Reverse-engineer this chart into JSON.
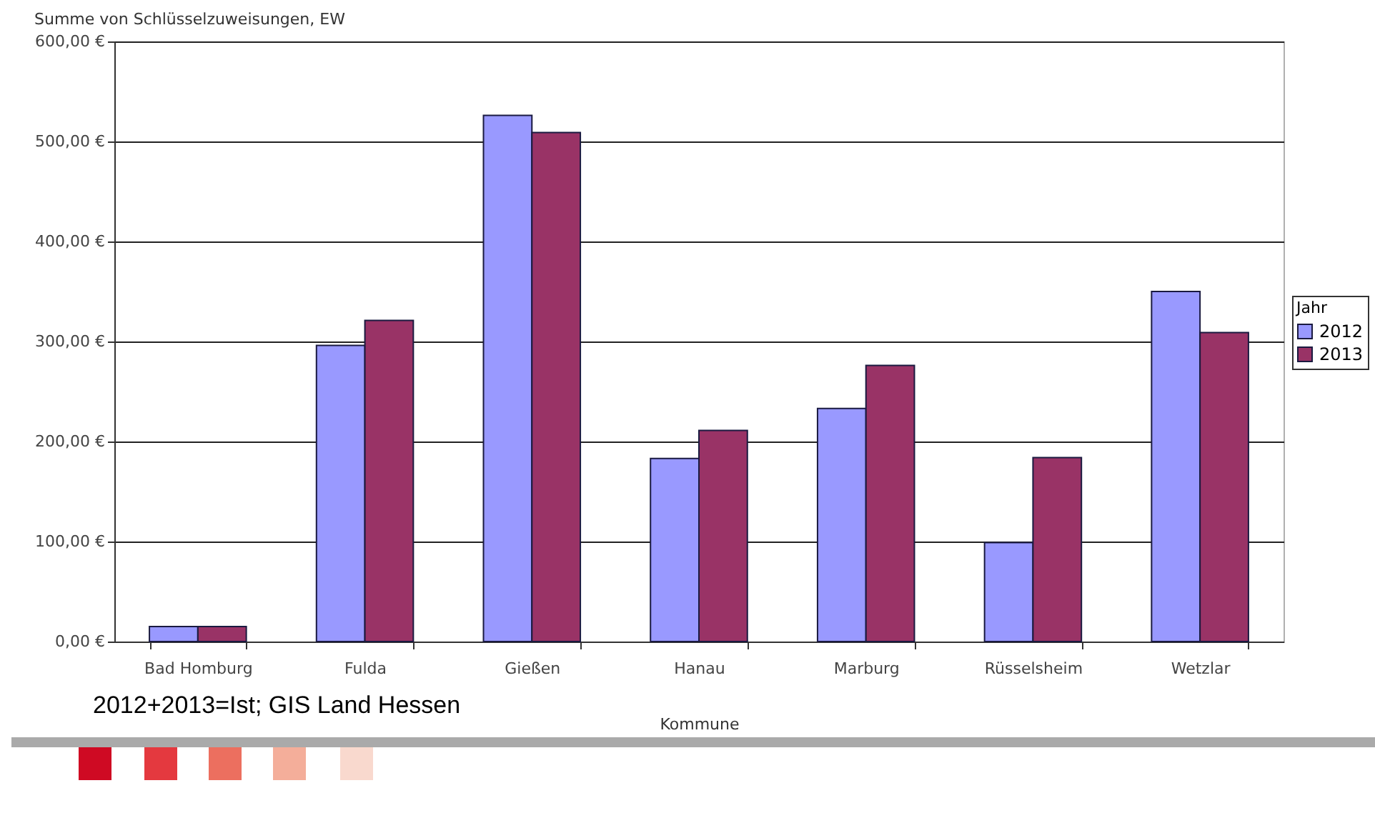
{
  "chart_data": {
    "type": "bar",
    "title": "Summe von Schlüsselzuweisungen, EW",
    "xlabel": "Kommune",
    "legend_title": "Jahr",
    "legend": "right",
    "categories": [
      "Bad Homburg",
      "Fulda",
      "Gießen",
      "Hanau",
      "Marburg",
      "Rüsselsheim",
      "Wetzlar"
    ],
    "series": [
      {
        "name": "2012",
        "color": "#9999ff",
        "values": [
          15,
          296,
          526,
          183,
          233,
          99,
          350
        ]
      },
      {
        "name": "2013",
        "color": "#993366",
        "values": [
          15,
          321,
          509,
          211,
          276,
          184,
          309
        ]
      }
    ],
    "ylim": [
      0,
      600
    ],
    "yticks": [
      {
        "value": 0,
        "label": "0,00 €"
      },
      {
        "value": 100,
        "label": "100,00 €"
      },
      {
        "value": 200,
        "label": "200,00 €"
      },
      {
        "value": 300,
        "label": "300,00 €"
      },
      {
        "value": 400,
        "label": "400,00 €"
      },
      {
        "value": 500,
        "label": "500,00 €"
      },
      {
        "value": 600,
        "label": "600,00 €"
      }
    ],
    "grid": "y",
    "annotations": [
      "2012+2013=Ist; GIS Land Hessen"
    ]
  }
}
